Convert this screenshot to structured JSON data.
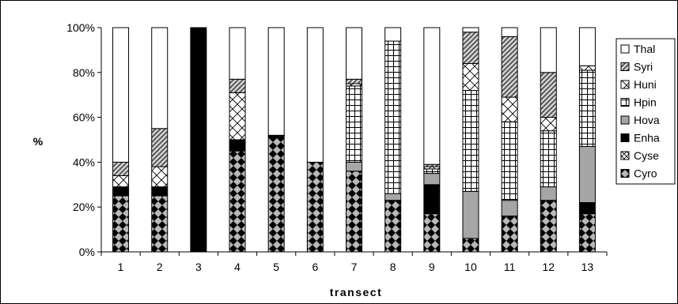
{
  "chart_data": {
    "type": "bar",
    "stacked": true,
    "percent": true,
    "xlabel": "transect",
    "ylabel": "%",
    "ylim": [
      0,
      100
    ],
    "yticks": [
      0,
      20,
      40,
      60,
      80,
      100
    ],
    "ytick_suffix": "%",
    "grid": false,
    "legend_position": "right",
    "categories": [
      "1",
      "2",
      "3",
      "4",
      "5",
      "6",
      "7",
      "8",
      "9",
      "10",
      "11",
      "12",
      "13"
    ],
    "series": [
      {
        "name": "Cyro",
        "pattern": "checker",
        "values": [
          25,
          25,
          0,
          45,
          51,
          40,
          36,
          23,
          17,
          6,
          16,
          23,
          17
        ]
      },
      {
        "name": "Cyse",
        "pattern": "cross-dots",
        "values": [
          0,
          0,
          0,
          0,
          0,
          0,
          0,
          0,
          0,
          0,
          0,
          0,
          0
        ]
      },
      {
        "name": "Enha",
        "pattern": "solid-black",
        "values": [
          4,
          4,
          100,
          5,
          1,
          0,
          0,
          0,
          13,
          0,
          0,
          0,
          5
        ]
      },
      {
        "name": "Hova",
        "pattern": "solid-gray",
        "values": [
          0,
          0,
          0,
          0,
          0,
          0,
          4,
          3,
          5,
          21,
          7,
          6,
          25
        ]
      },
      {
        "name": "Hpin",
        "pattern": "grid",
        "values": [
          0,
          0,
          0,
          0,
          0,
          0,
          34,
          68,
          2,
          45,
          35,
          25,
          34
        ]
      },
      {
        "name": "Huni",
        "pattern": "diamond",
        "values": [
          5,
          9,
          0,
          21,
          0,
          0,
          1,
          0,
          1,
          12,
          11,
          6,
          2
        ]
      },
      {
        "name": "Syri",
        "pattern": "diagonal",
        "values": [
          6,
          17,
          0,
          6,
          0,
          0,
          2,
          0,
          1,
          14,
          27,
          20,
          0
        ]
      },
      {
        "name": "Thal",
        "pattern": "white",
        "values": [
          60,
          45,
          0,
          23,
          48,
          60,
          23,
          6,
          61,
          2,
          4,
          20,
          17
        ]
      }
    ],
    "legend_order": [
      "Thal",
      "Syri",
      "Huni",
      "Hpin",
      "Hova",
      "Enha",
      "Cyse",
      "Cyro"
    ]
  }
}
